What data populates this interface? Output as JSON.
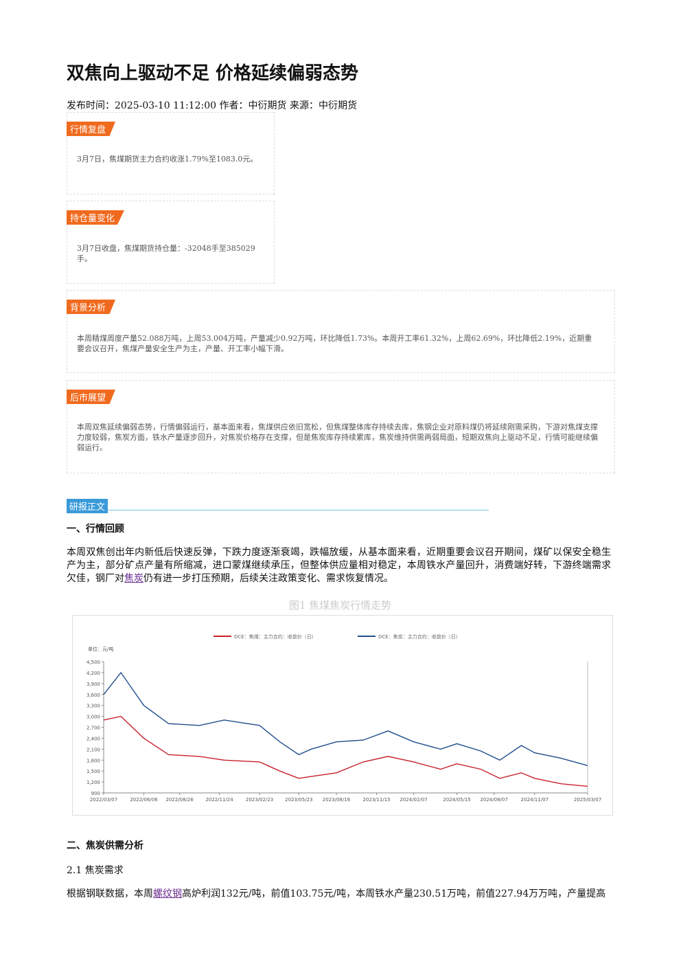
{
  "header": {
    "title": "双焦向上驱动不足 价格延续偏弱态势",
    "meta": "发布时间：2025-03-10 11:12:00 作者：中衍期货 来源：中衍期货"
  },
  "summary": [
    {
      "tag": "行情复盘",
      "text": "3月7日，焦煤期货主力合约收涨1.79%至1083.0元。"
    },
    {
      "tag": "持仓量变化",
      "text": "3月7日收盘，焦煤期货持仓量：-32048手至385029手。"
    },
    {
      "tag": "背景分析",
      "text": "本周精煤周度产量52.088万吨，上周53.004万吨，产量减少0.92万吨，环比降低1.73%。本周开工率61.32%，上周62.69%，环比降低2.19%，近期重要会议召开，焦煤产量安全生产为主，产量、开工率小幅下滑。"
    },
    {
      "tag": "后市展望",
      "text": "本周双焦延续偏弱态势，行情偏弱运行，基本面来看，焦煤供应依旧宽松，但焦煤整体库存持续去库，焦钢企业对原料煤仍将延续刚需采购，下游对焦煤支撑力度较弱，焦炭方面，铁水产量逐步回升，对焦炭价格存在支撑，但是焦炭库存持续累库，焦炭维持供需两弱局面，短期双焦向上驱动不足，行情可能继续偏弱运行。"
    }
  ],
  "report": {
    "tag": "研报正文",
    "section1": {
      "heading": "一、行情回顾",
      "parts": [
        "本周双焦创出年内新低后快速反弹，下跌力度逐渐衰竭，跌幅放缓，从基本面来看，近期重要会议召开期间，煤矿以保安全稳生产为主，部分矿点产量有所缩减，进口蒙煤继续承压，但整体供应量相对稳定，本周铁水产量回升，消费端好转，下游终端需求欠佳，钢厂对",
        "焦炭",
        "仍有进一步打压预期，后续关注政策变化、需求恢复情况。"
      ]
    },
    "figure_caption": "图1 焦煤焦炭行情走势",
    "section2": {
      "heading": "二、焦炭供需分析",
      "subheading": "2.1 焦炭需求",
      "parts": [
        "根据钢联数据，本周",
        "螺纹钢",
        "高炉利润132元/吨，前值103.75元/吨，本周铁水产量230.51万吨，前值227.94万万吨，产量提高"
      ]
    }
  },
  "chart_data": {
    "type": "line",
    "unit": "单位：元/吨",
    "x": [
      "2022/03/07",
      "2022/04/15",
      "2022/06/06",
      "2022/08/01",
      "2022/10/10",
      "2022/12/05",
      "2023/02/23",
      "2023/04/10",
      "2023/05/23",
      "2023/06/20",
      "2023/08/16",
      "2023/10/16",
      "2023/12/11",
      "2024/02/07",
      "2024/04/08",
      "2024/05/15",
      "2024/07/08",
      "2024/08/20",
      "2024/10/08",
      "2024/11/07",
      "2025/01/06",
      "2025/03/07"
    ],
    "series": [
      {
        "name": "DCE：焦煤：主力合约：收盘价（日）",
        "color": "#c8202a",
        "values": [
          2900,
          3000,
          2400,
          1950,
          1900,
          1800,
          1750,
          1500,
          1300,
          1350,
          1450,
          1750,
          1900,
          1750,
          1550,
          1700,
          1550,
          1300,
          1450,
          1300,
          1150,
          1080
        ]
      },
      {
        "name": "DCE：焦炭：主力合约：收盘价（日）",
        "color": "#1f4e8c",
        "values": [
          3600,
          4200,
          3300,
          2800,
          2750,
          2900,
          2750,
          2300,
          1950,
          2100,
          2300,
          2350,
          2600,
          2300,
          2100,
          2250,
          2050,
          1800,
          2200,
          2000,
          1850,
          1650
        ]
      }
    ],
    "ylim": [
      900,
      4500
    ],
    "yticks": [
      900,
      {
        "value": 1200,
        "label": "1,200"
      },
      {
        "value": 1500,
        "label": "1,500"
      },
      {
        "value": 1800,
        "label": "1,800"
      },
      {
        "value": 2100,
        "label": "2,100"
      },
      {
        "value": 2400,
        "label": "2,400"
      },
      {
        "value": 2700,
        "label": "2,700"
      },
      {
        "value": 3000,
        "label": "3,000"
      },
      {
        "value": 3300,
        "label": "3,300"
      },
      {
        "value": 3600,
        "label": "3,600"
      },
      {
        "value": 3900,
        "label": "3,900"
      },
      {
        "value": 4200,
        "label": "4,200"
      },
      {
        "value": 4500,
        "label": "4,500"
      }
    ],
    "xlim": [
      "2022/03/07",
      "2025/03/07"
    ],
    "xticks": [
      "2022/03/07",
      "2022/06/06",
      "2022/08/26",
      "2022/11/24",
      "2023/02/23",
      "2023/05/23",
      "2023/08/16",
      "2023/11/15",
      "2024/02/07",
      "2024/05/15",
      "2024/08/07",
      "2024/11/07",
      "2025/03/07"
    ]
  }
}
